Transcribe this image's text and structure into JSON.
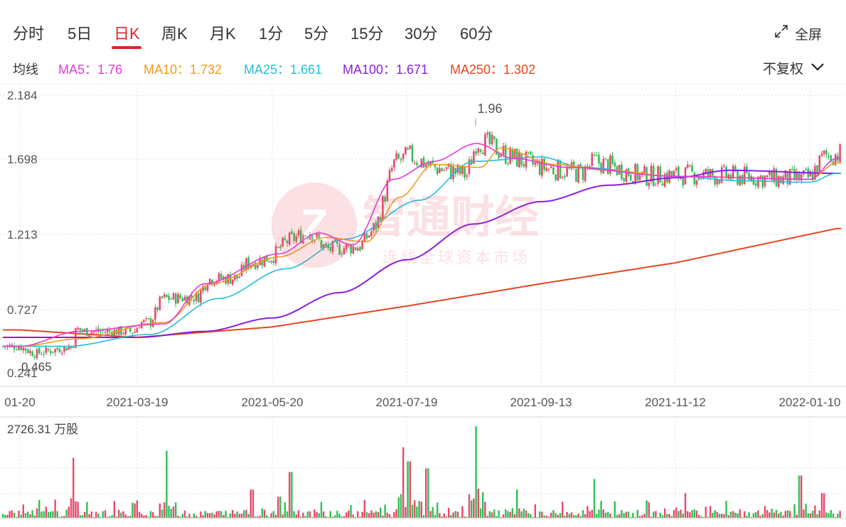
{
  "tabs": [
    {
      "label": "分时",
      "active": false
    },
    {
      "label": "5日",
      "active": false
    },
    {
      "label": "日K",
      "active": true
    },
    {
      "label": "周K",
      "active": false
    },
    {
      "label": "月K",
      "active": false
    },
    {
      "label": "1分",
      "active": false
    },
    {
      "label": "5分",
      "active": false
    },
    {
      "label": "15分",
      "active": false
    },
    {
      "label": "30分",
      "active": false
    },
    {
      "label": "60分",
      "active": false
    }
  ],
  "fullscreen_label": "全屏",
  "ma_label": "均线",
  "ma": [
    {
      "label": "MA5：1.76",
      "color": "#e43ad9"
    },
    {
      "label": "MA10：1.732",
      "color": "#f49a1c"
    },
    {
      "label": "MA25：1.661",
      "color": "#21bfe0"
    },
    {
      "label": "MA100：1.671",
      "color": "#8a1ee0"
    },
    {
      "label": "MA250：1.302",
      "color": "#e8451c"
    }
  ],
  "adjust_label": "不复权",
  "watermark": {
    "title": "智通财经",
    "subtitle": "连线全球资本市场"
  },
  "colors": {
    "up": "#e8496b",
    "down": "#2fbf55",
    "grid": "#e2e2e2",
    "axis_text": "#555555"
  },
  "chart_data": {
    "type": "candlestick",
    "y_ticks": [
      "2.184",
      "1.698",
      "1.213",
      "0.727",
      "0.241"
    ],
    "ylim": [
      0.241,
      2.184
    ],
    "x_ticks": [
      "2021-01-20",
      "2021-03-19",
      "2021-05-20",
      "2021-07-19",
      "2021-09-13",
      "2021-11-12",
      "2022-01-10"
    ],
    "x_tick_display": [
      "01-20",
      "2021-03-19",
      "2021-05-20",
      "2021-07-19",
      "2021-09-13",
      "2021-11-12",
      "2022-01-10"
    ],
    "max_annotation": "1.96",
    "min_annotation": "0.465",
    "max_value": 1.96,
    "min_value": 0.465,
    "price_path": [
      {
        "x": 0.0,
        "y": 0.5
      },
      {
        "x": 0.12,
        "y": 0.45
      },
      {
        "x": 0.45,
        "y": 0.5
      },
      {
        "x": 0.48,
        "y": 0.62
      },
      {
        "x": 0.55,
        "y": 0.6
      },
      {
        "x": 0.98,
        "y": 0.6
      },
      {
        "x": 1.02,
        "y": 0.66
      },
      {
        "x": 1.1,
        "y": 0.66
      },
      {
        "x": 1.18,
        "y": 0.82
      },
      {
        "x": 1.45,
        "y": 0.83
      },
      {
        "x": 1.52,
        "y": 0.95
      },
      {
        "x": 1.75,
        "y": 0.96
      },
      {
        "x": 1.8,
        "y": 1.05
      },
      {
        "x": 2.0,
        "y": 1.1
      },
      {
        "x": 2.1,
        "y": 1.2
      },
      {
        "x": 2.28,
        "y": 1.27
      },
      {
        "x": 2.4,
        "y": 1.15
      },
      {
        "x": 2.65,
        "y": 1.17
      },
      {
        "x": 2.78,
        "y": 1.32
      },
      {
        "x": 2.9,
        "y": 1.72
      },
      {
        "x": 3.02,
        "y": 1.78
      },
      {
        "x": 3.2,
        "y": 1.7
      },
      {
        "x": 3.45,
        "y": 1.65
      },
      {
        "x": 3.52,
        "y": 1.88
      },
      {
        "x": 3.62,
        "y": 1.85
      },
      {
        "x": 3.75,
        "y": 1.78
      },
      {
        "x": 4.0,
        "y": 1.7
      },
      {
        "x": 4.3,
        "y": 1.66
      },
      {
        "x": 4.4,
        "y": 1.74
      },
      {
        "x": 4.75,
        "y": 1.64
      },
      {
        "x": 5.1,
        "y": 1.65
      },
      {
        "x": 5.45,
        "y": 1.64
      },
      {
        "x": 5.8,
        "y": 1.62
      },
      {
        "x": 6.0,
        "y": 1.63
      },
      {
        "x": 6.1,
        "y": 1.77
      },
      {
        "x": 6.2,
        "y": 1.79
      }
    ],
    "moving_averages": [
      {
        "name": "MA250",
        "color": "#e8451c",
        "points": [
          {
            "x": 0.0,
            "y": 0.61
          },
          {
            "x": 1.0,
            "y": 0.56
          },
          {
            "x": 2.0,
            "y": 0.63
          },
          {
            "x": 3.0,
            "y": 0.77
          },
          {
            "x": 4.0,
            "y": 0.92
          },
          {
            "x": 5.0,
            "y": 1.06
          },
          {
            "x": 6.2,
            "y": 1.29
          }
        ]
      },
      {
        "name": "MA100",
        "color": "#8a1ee0",
        "points": [
          {
            "x": 0.0,
            "y": 0.56
          },
          {
            "x": 1.0,
            "y": 0.56
          },
          {
            "x": 1.5,
            "y": 0.6
          },
          {
            "x": 2.0,
            "y": 0.69
          },
          {
            "x": 2.5,
            "y": 0.86
          },
          {
            "x": 3.0,
            "y": 1.08
          },
          {
            "x": 3.5,
            "y": 1.32
          },
          {
            "x": 4.0,
            "y": 1.47
          },
          {
            "x": 4.5,
            "y": 1.58
          },
          {
            "x": 5.0,
            "y": 1.63
          },
          {
            "x": 5.4,
            "y": 1.68
          },
          {
            "x": 6.2,
            "y": 1.66
          }
        ]
      },
      {
        "name": "MA25",
        "color": "#21bfe0",
        "points": [
          {
            "x": 0.0,
            "y": 0.5
          },
          {
            "x": 0.4,
            "y": 0.5
          },
          {
            "x": 1.1,
            "y": 0.58
          },
          {
            "x": 1.6,
            "y": 0.82
          },
          {
            "x": 2.1,
            "y": 1.02
          },
          {
            "x": 2.55,
            "y": 1.22
          },
          {
            "x": 3.1,
            "y": 1.48
          },
          {
            "x": 3.5,
            "y": 1.74
          },
          {
            "x": 4.0,
            "y": 1.77
          },
          {
            "x": 4.3,
            "y": 1.7
          },
          {
            "x": 5.0,
            "y": 1.64
          },
          {
            "x": 5.5,
            "y": 1.61
          },
          {
            "x": 6.0,
            "y": 1.6
          },
          {
            "x": 6.2,
            "y": 1.66
          }
        ]
      },
      {
        "name": "MA10",
        "color": "#f49a1c",
        "points": [
          {
            "x": 0.0,
            "y": 0.5
          },
          {
            "x": 0.5,
            "y": 0.55
          },
          {
            "x": 1.2,
            "y": 0.66
          },
          {
            "x": 1.55,
            "y": 0.92
          },
          {
            "x": 2.05,
            "y": 1.1
          },
          {
            "x": 2.4,
            "y": 1.23
          },
          {
            "x": 2.7,
            "y": 1.2
          },
          {
            "x": 2.95,
            "y": 1.5
          },
          {
            "x": 3.2,
            "y": 1.72
          },
          {
            "x": 3.55,
            "y": 1.7
          },
          {
            "x": 3.7,
            "y": 1.83
          },
          {
            "x": 4.1,
            "y": 1.72
          },
          {
            "x": 4.5,
            "y": 1.68
          },
          {
            "x": 5.0,
            "y": 1.64
          },
          {
            "x": 6.0,
            "y": 1.62
          },
          {
            "x": 6.2,
            "y": 1.73
          }
        ]
      },
      {
        "name": "MA5",
        "color": "#e43ad9",
        "points": [
          {
            "x": 0.0,
            "y": 0.5
          },
          {
            "x": 0.5,
            "y": 0.6
          },
          {
            "x": 1.2,
            "y": 0.65
          },
          {
            "x": 1.5,
            "y": 0.92
          },
          {
            "x": 2.05,
            "y": 1.12
          },
          {
            "x": 2.35,
            "y": 1.26
          },
          {
            "x": 2.6,
            "y": 1.18
          },
          {
            "x": 2.9,
            "y": 1.62
          },
          {
            "x": 3.2,
            "y": 1.74
          },
          {
            "x": 3.52,
            "y": 1.86
          },
          {
            "x": 3.8,
            "y": 1.76
          },
          {
            "x": 4.2,
            "y": 1.7
          },
          {
            "x": 5.0,
            "y": 1.64
          },
          {
            "x": 6.0,
            "y": 1.62
          },
          {
            "x": 6.2,
            "y": 1.76
          }
        ]
      }
    ],
    "volume_label": "2726.31 万股",
    "volume_spikes": [
      {
        "x": 0.45,
        "v": 0.85
      },
      {
        "x": 1.22,
        "v": 0.95
      },
      {
        "x": 1.85,
        "v": 0.4
      },
      {
        "x": 2.14,
        "v": 0.65
      },
      {
        "x": 2.05,
        "v": 0.3
      },
      {
        "x": 2.97,
        "v": 1.0
      },
      {
        "x": 3.02,
        "v": 0.8
      },
      {
        "x": 3.15,
        "v": 0.7
      },
      {
        "x": 3.03,
        "v": 0.55
      },
      {
        "x": 3.52,
        "v": 1.3
      },
      {
        "x": 3.82,
        "v": 0.4
      },
      {
        "x": 4.4,
        "v": 0.55
      },
      {
        "x": 5.07,
        "v": 0.35
      },
      {
        "x": 5.93,
        "v": 0.6
      },
      {
        "x": 6.1,
        "v": 0.35
      }
    ]
  }
}
